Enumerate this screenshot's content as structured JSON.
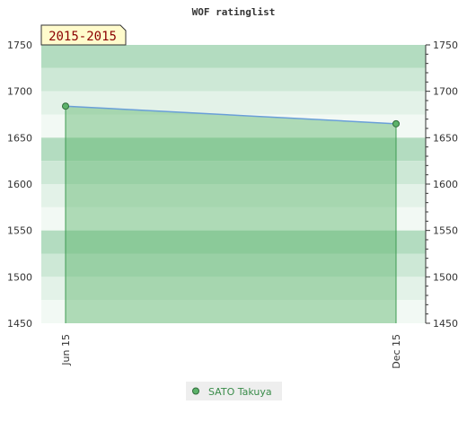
{
  "chart_data": {
    "type": "area",
    "title": "WOF ratinglist",
    "period_label": "2015-2015",
    "x": [
      "Jun 15",
      "Dec 15"
    ],
    "series": [
      {
        "name": "SATO Takuya",
        "values": [
          1684,
          1665
        ]
      }
    ],
    "ylim": [
      1450,
      1750
    ],
    "yticks": [
      1450,
      1500,
      1550,
      1600,
      1650,
      1700,
      1750
    ],
    "y_axis": "both sides",
    "legend_position": "bottom-center",
    "background_bands": true,
    "colors": {
      "line": "#6a9fd8",
      "fill": "#5cb36a",
      "marker": "#3e8e4e",
      "band_dark": "#b3dcc0",
      "band_mid": "#cde8d6",
      "band_light": "#e3f2e8",
      "band_lightest": "#f2f9f4",
      "legend_text": "#3a8c4a",
      "period_bg": "#fffbcc",
      "period_text": "#8b0000"
    }
  }
}
